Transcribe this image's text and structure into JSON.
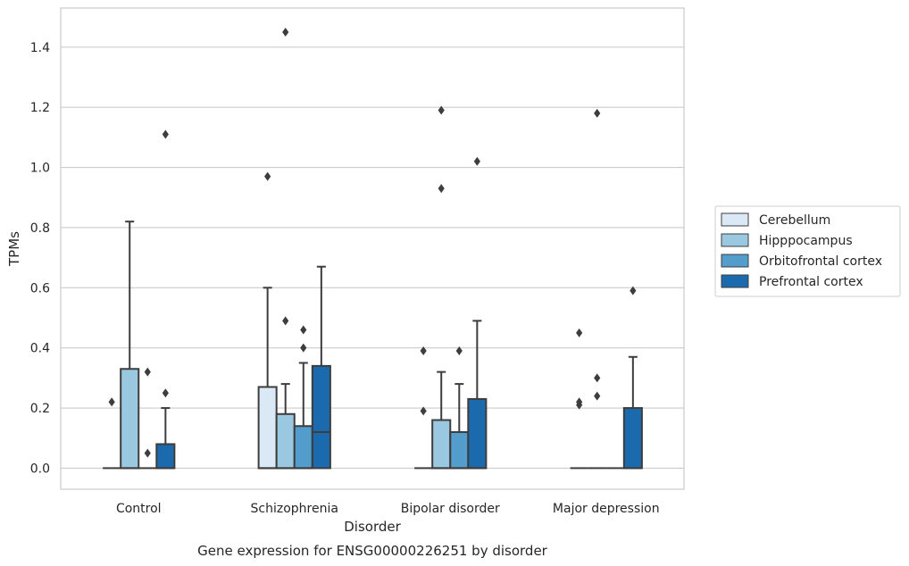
{
  "chart_data": {
    "type": "box",
    "title": "",
    "caption": "Gene expression for ENSG00000226251 by disorder",
    "xlabel": "Disorder",
    "ylabel": "TPMs",
    "ylim": [
      -0.07,
      1.53
    ],
    "yticks": [
      "0.0",
      "0.2",
      "0.4",
      "0.6",
      "0.8",
      "1.0",
      "1.2",
      "1.4"
    ],
    "grid": true,
    "legend_position": "right",
    "categories": [
      "Control",
      "Schizophrenia",
      "Bipolar disorder",
      "Major depression"
    ],
    "series": [
      {
        "name": "Cerebellum",
        "color": "#dbe9f6",
        "boxes": [
          {
            "q1": 0,
            "median": 0,
            "q3": 0,
            "whisker_low": 0,
            "whisker_high": 0,
            "outliers": [
              0.22
            ]
          },
          {
            "q1": 0,
            "median": 0,
            "q3": 0.27,
            "whisker_low": 0,
            "whisker_high": 0.6,
            "outliers": [
              0.97
            ]
          },
          {
            "q1": 0,
            "median": 0,
            "q3": 0,
            "whisker_low": 0,
            "whisker_high": 0,
            "outliers": [
              0.19,
              0.39
            ]
          },
          {
            "q1": 0,
            "median": 0,
            "q3": 0,
            "whisker_low": 0,
            "whisker_high": 0,
            "outliers": [
              0.21,
              0.22,
              0.45
            ]
          }
        ]
      },
      {
        "name": "Hipppocampus",
        "color": "#9ac8e0",
        "boxes": [
          {
            "q1": 0,
            "median": 0,
            "q3": 0.33,
            "whisker_low": 0,
            "whisker_high": 0.82,
            "outliers": []
          },
          {
            "q1": 0,
            "median": 0,
            "q3": 0.18,
            "whisker_low": 0,
            "whisker_high": 0.28,
            "outliers": [
              0.49,
              1.45
            ]
          },
          {
            "q1": 0,
            "median": 0,
            "q3": 0.16,
            "whisker_low": 0,
            "whisker_high": 0.32,
            "outliers": [
              0.93,
              1.19
            ]
          },
          {
            "q1": 0,
            "median": 0,
            "q3": 0,
            "whisker_low": 0,
            "whisker_high": 0,
            "outliers": [
              0.24,
              0.3,
              1.18
            ]
          }
        ]
      },
      {
        "name": "Orbitofrontal cortex",
        "color": "#529dcc",
        "boxes": [
          {
            "q1": 0,
            "median": 0,
            "q3": 0,
            "whisker_low": 0,
            "whisker_high": 0,
            "outliers": [
              0.05,
              0.32
            ]
          },
          {
            "q1": 0,
            "median": 0,
            "q3": 0.14,
            "whisker_low": 0,
            "whisker_high": 0.35,
            "outliers": [
              0.4,
              0.46
            ]
          },
          {
            "q1": 0,
            "median": 0,
            "q3": 0.12,
            "whisker_low": 0,
            "whisker_high": 0.28,
            "outliers": [
              0.39
            ]
          },
          {
            "q1": 0,
            "median": 0,
            "q3": 0,
            "whisker_low": 0,
            "whisker_high": 0,
            "outliers": []
          }
        ]
      },
      {
        "name": "Prefrontal cortex",
        "color": "#1c6aae",
        "boxes": [
          {
            "q1": 0,
            "median": 0,
            "q3": 0.08,
            "whisker_low": 0,
            "whisker_high": 0.2,
            "outliers": [
              0.25,
              1.11
            ]
          },
          {
            "q1": 0,
            "median": 0.12,
            "q3": 0.34,
            "whisker_low": 0,
            "whisker_high": 0.67,
            "outliers": []
          },
          {
            "q1": 0,
            "median": 0,
            "q3": 0.23,
            "whisker_low": 0,
            "whisker_high": 0.49,
            "outliers": [
              1.02
            ]
          },
          {
            "q1": 0,
            "median": 0,
            "q3": 0.2,
            "whisker_low": 0,
            "whisker_high": 0.37,
            "outliers": [
              0.59
            ]
          }
        ]
      }
    ]
  }
}
